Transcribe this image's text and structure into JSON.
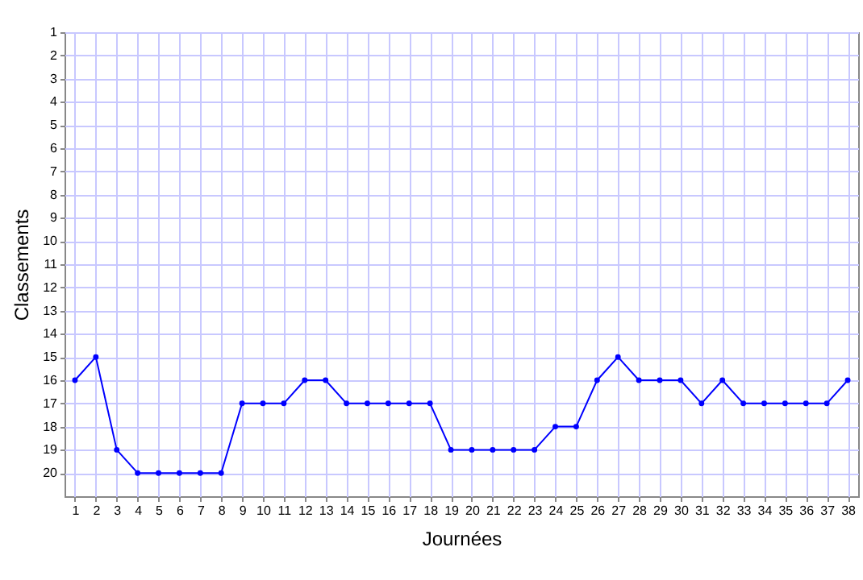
{
  "chart_data": {
    "type": "line",
    "xlabel": "Journées",
    "ylabel": "Classements",
    "x": [
      1,
      2,
      3,
      4,
      5,
      6,
      7,
      8,
      9,
      10,
      11,
      12,
      13,
      14,
      15,
      16,
      17,
      18,
      19,
      20,
      21,
      22,
      23,
      24,
      25,
      26,
      27,
      28,
      29,
      30,
      31,
      32,
      33,
      34,
      35,
      36,
      37,
      38
    ],
    "values": [
      16,
      15,
      19,
      20,
      20,
      20,
      20,
      20,
      17,
      17,
      17,
      16,
      16,
      17,
      17,
      17,
      17,
      17,
      19,
      19,
      19,
      19,
      19,
      18,
      18,
      16,
      15,
      16,
      16,
      16,
      17,
      16,
      17,
      17,
      17,
      17,
      17,
      16
    ],
    "color": "#0000ff",
    "marker": "circle",
    "grid": true,
    "xlim": [
      0.5,
      38.5
    ],
    "ylim": [
      21,
      1
    ],
    "xticks": [
      1,
      2,
      3,
      4,
      5,
      6,
      7,
      8,
      9,
      10,
      11,
      12,
      13,
      14,
      15,
      16,
      17,
      18,
      19,
      20,
      21,
      22,
      23,
      24,
      25,
      26,
      27,
      28,
      29,
      30,
      31,
      32,
      33,
      34,
      35,
      36,
      37,
      38
    ],
    "yticks": [
      1,
      2,
      3,
      4,
      5,
      6,
      7,
      8,
      9,
      10,
      11,
      12,
      13,
      14,
      15,
      16,
      17,
      18,
      19,
      20
    ]
  }
}
